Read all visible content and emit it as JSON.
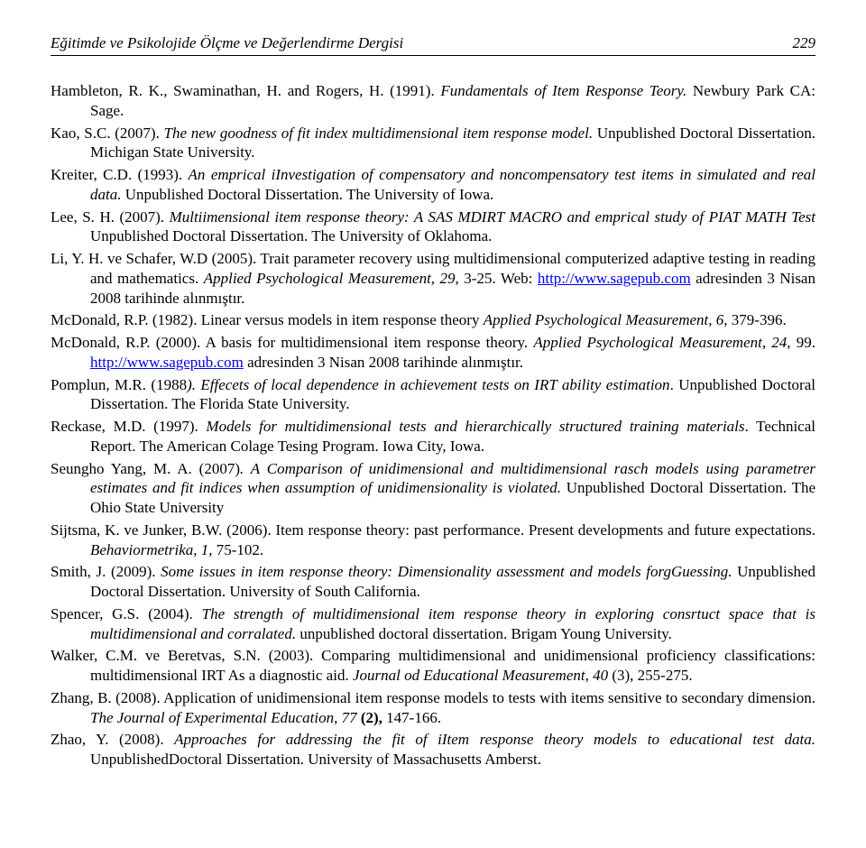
{
  "header": {
    "journal": "Eğitimde ve Psikolojide Ölçme ve Değerlendirme Dergisi",
    "page_number": "229"
  },
  "refs": {
    "r1": {
      "auth": "Hambleton, R. K., Swaminathan, H. and Rogers, H. (1991). ",
      "title": "Fundamentals of Item Response Teory.",
      "rest": " Newbury Park CA: Sage."
    },
    "r2": {
      "auth": "Kao, S.C. (2007). ",
      "title": "The new goodness of fit index multidimensional item response model.",
      "rest": " Unpublished Doctoral Dissertation. Michigan State University."
    },
    "r3": {
      "auth": "Kreiter, C.D. (1993). ",
      "title": "An emprical iInvestigation of compensatory and noncompensatory test items in simulated and real data.",
      "rest": " Unpublished Doctoral Dissertation. The University of Iowa."
    },
    "r4": {
      "auth": "Lee, S. H. (2007). ",
      "title": "Multiimensional item response theory: A SAS MDIRT MACRO and emprical study of PIAT MATH Test",
      "rest": " Unpublished Doctoral Dissertation. The University of Oklahoma."
    },
    "r5": {
      "auth": "Li, Y. H. ve Schafer, W.D (2005). Trait parameter recovery using multidimensional computerized adaptive testing in reading and mathematics. ",
      "title": "Applied Psychological Measurement, 29",
      "rest1": ", 3-25. Web: ",
      "link": "http://www.sagepub.com",
      "rest2": " adresinden 3 Nisan 2008 tarihinde alınmıştır."
    },
    "r6": {
      "auth": "McDonald, R.P. (1982). Linear versus models in item response theory ",
      "title": "Applied Psychological Measurement, 6",
      "rest": ", 379-396."
    },
    "r7": {
      "auth": "McDonald, R.P. (2000). A basis for multidimensional item response theory. ",
      "title": "Applied Psychological Measurement, 24",
      "rest1": ", 99. ",
      "link": "http://www.sagepub.com",
      "rest2": " adresinden 3 Nisan 2008 tarihinde alınmıştır."
    },
    "r8": {
      "auth": "Pomplun, M.R. (1988",
      "title": "). Effecets of local dependence in achievement tests on IRT ability estimation",
      "rest": ". Unpublished Doctoral Dissertation. The Florida State University."
    },
    "r9": {
      "auth": "Reckase, M.D. (1997). ",
      "title": "Models for multidimensional tests and hierarchically structured training materials",
      "rest": ". Technical Report. The American Colage Tesing Program. Iowa City, Iowa."
    },
    "r10": {
      "auth": "Seungho Yang, M. A. (2007)",
      "title": ". A Comparison of unidimensional and multidimensional rasch models using parametrer estimates and fit indices when assumption of unidimensionality is violated.",
      "rest": " Unpublished Doctoral Dissertation. The Ohio State University"
    },
    "r11": {
      "auth": "Sijtsma, K. ve Junker, B.W. (2006). Item response theory: past performance. Present developments and future expectations. ",
      "title": "Behaviormetrika, 1,",
      "rest": " 75-102."
    },
    "r12": {
      "auth": "Smith, J. (2009). ",
      "title": "Some issues in item response theory: Dimensionality assessment and models forgGuessing.",
      "rest": " Unpublished Doctoral Dissertation. University of South California."
    },
    "r13": {
      "auth": "Spencer, G.S. (2004). ",
      "title": "The strength of multidimensional item response theory in exploring consrtuct space that is multidimensional and corralated.",
      "rest": " unpublished doctoral dissertation. Brigam Young University."
    },
    "r14": {
      "auth": "Walker, C.M. ve Beretvas, S.N. (2003). Comparing multidimensional and unidimensional proficiency classifications: multidimensional IRT As a diagnostic aid. ",
      "title": "Journal od Educational Measurement, 40",
      "rest": " (3), 255-275."
    },
    "r15": {
      "auth": "Zhang, B. (2008). Application of unidimensional item response models to tests with items sensitive to secondary dimension. ",
      "title": "The Journal of Experimental Education, 77 ",
      "bold": "(2),",
      "rest": " 147-166."
    },
    "r16": {
      "auth": "Zhao, Y. (2008). ",
      "title": "Approaches for addressing the fit of iItem response theory models to educational test data.",
      "rest": " UnpublishedDoctoral Dissertation. University of Massachusetts Amberst."
    }
  }
}
